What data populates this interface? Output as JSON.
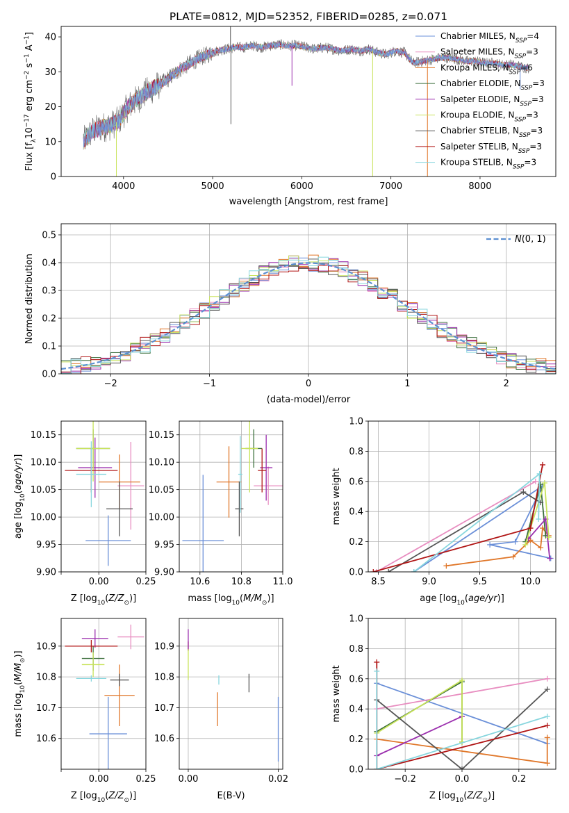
{
  "colors": {
    "chabrier_miles": "#6a8fd8",
    "salpeter_miles": "#e88dc0",
    "kroupa_miles": "#e0772a",
    "chabrier_elodie": "#3b6e3b",
    "salpeter_elodie": "#9b2fae",
    "kroupa_elodie": "#c8e35a",
    "chabrier_stelib": "#555555",
    "salpeter_stelib": "#b01515",
    "kroupa_stelib": "#87d6de",
    "gauss": "#5b8fd1"
  },
  "chart_data": [
    {
      "id": "spectrum",
      "type": "line",
      "title": "PLATE=0812, MJD=52352, FIBERID=0285, z=0.071",
      "xlabel": "wavelength [Angstrom, rest frame]",
      "ylabel": "Flux [f_λ10^-17 erg cm^-2 s^-1 A^-1]",
      "xlim": [
        3300,
        8850
      ],
      "ylim": [
        0,
        43
      ],
      "xticks": [
        4000,
        5000,
        6000,
        7000,
        8000
      ],
      "yticks": [
        0,
        10,
        20,
        30,
        40
      ],
      "grid": false,
      "legend_position": "top-right",
      "continuum": {
        "x": [
          3550,
          3650,
          3750,
          3850,
          3950,
          4050,
          4150,
          4250,
          4350,
          4450,
          4550,
          4650,
          4750,
          4850,
          4950,
          5050,
          5150,
          5250,
          5350,
          5450,
          5550,
          5650,
          5750,
          5850,
          5950,
          6050,
          6150,
          6250,
          6350,
          6450,
          6550,
          6650,
          6750,
          6850,
          6950,
          7050,
          7150,
          7250,
          7350,
          7450,
          7550,
          7650,
          7750,
          7850,
          7950,
          8050,
          8150,
          8250,
          8350,
          8450,
          8550
        ],
        "y": [
          10,
          13,
          14,
          14.5,
          16,
          20,
          22,
          24,
          25.5,
          27,
          29,
          31,
          32.5,
          34,
          35,
          36,
          36.5,
          37,
          37,
          37.5,
          37,
          37.5,
          37.8,
          37.5,
          37.5,
          37,
          36.5,
          37,
          36.5,
          36,
          36.5,
          36,
          36.5,
          35.5,
          35,
          36,
          35.5,
          32.5,
          33,
          33.5,
          34,
          34,
          33.5,
          33,
          33,
          32.5,
          32.5,
          32,
          32,
          31.5,
          31
        ]
      },
      "spikes": [
        {
          "x": 5200,
          "y": 43,
          "series": "Chabrier STELIB"
        },
        {
          "x": 5205,
          "y": 15,
          "series": "Chabrier STELIB"
        },
        {
          "x": 6795,
          "y": 0,
          "series": "Kroupa ELODIE"
        },
        {
          "x": 7410,
          "y": 0,
          "series": "Kroupa MILES"
        },
        {
          "x": 3920,
          "y": 0,
          "series": "Kroupa ELODIE"
        },
        {
          "x": 5890,
          "y": 26,
          "series": "Salpeter ELODIE"
        },
        {
          "x": 8450,
          "y": 25,
          "series": "Chabrier MILES"
        }
      ],
      "series": [
        {
          "name": "Chabrier MILES, N_SSP=4"
        },
        {
          "name": "Salpeter MILES, N_SSP=3"
        },
        {
          "name": "Kroupa MILES, N_SSP=6"
        },
        {
          "name": "Chabrier ELODIE, N_SSP=3"
        },
        {
          "name": "Salpeter ELODIE, N_SSP=3"
        },
        {
          "name": "Kroupa ELODIE, N_SSP=3"
        },
        {
          "name": "Chabrier STELIB, N_SSP=3"
        },
        {
          "name": "Salpeter STELIB, N_SSP=3"
        },
        {
          "name": "Kroupa STELIB, N_SSP=3"
        }
      ]
    },
    {
      "id": "residuals",
      "type": "histogram",
      "xlabel": "(data-model)/error",
      "ylabel": "Normed distribution",
      "xlim": [
        -2.5,
        2.5
      ],
      "ylim": [
        0,
        0.54
      ],
      "xticks": [
        -2,
        -1,
        0,
        1,
        2
      ],
      "yticks": [
        0.0,
        0.1,
        0.2,
        0.3,
        0.4,
        0.5
      ],
      "grid": true,
      "legend_position": "top-right",
      "legend_label": "N(0, 1)",
      "bin_width": 0.1,
      "bin_start": -2.5
    },
    {
      "id": "age_vs_Z",
      "type": "errorbar",
      "xlabel": "Z [log10(Z/Z_sun)]",
      "ylabel": "age [log10(age/yr)]",
      "xlim": [
        -0.2,
        0.25
      ],
      "ylim": [
        9.9,
        10.175
      ],
      "xticks": [
        -0.2,
        0.0,
        0.25
      ],
      "xticklabels": [
        "",
        "0.00",
        "0.25"
      ],
      "yticks": [
        9.9,
        9.95,
        10.0,
        10.05,
        10.1,
        10.15
      ],
      "grid": true,
      "points": [
        {
          "series": "Chabrier MILES",
          "x": 0.05,
          "xerr": 0.12,
          "y": 9.957,
          "yerr": 0.046
        },
        {
          "series": "Salpeter MILES",
          "x": 0.17,
          "xerr": 0.07,
          "y": 10.057,
          "yerr": 0.08
        },
        {
          "series": "Kroupa MILES",
          "x": 0.11,
          "xerr": 0.11,
          "y": 10.064,
          "yerr": 0.05
        },
        {
          "series": "Chabrier ELODIE",
          "x": -0.03,
          "xerr": 0.09,
          "y": 10.125,
          "yerr": 0.035
        },
        {
          "series": "Salpeter ELODIE",
          "x": -0.02,
          "xerr": 0.09,
          "y": 10.09,
          "yerr": 0.055
        },
        {
          "series": "Kroupa ELODIE",
          "x": -0.03,
          "xerr": 0.09,
          "y": 10.125,
          "yerr": 0.06
        },
        {
          "series": "Chabrier STELIB",
          "x": 0.11,
          "xerr": 0.07,
          "y": 10.015,
          "yerr": 0.05
        },
        {
          "series": "Salpeter STELIB",
          "x": -0.04,
          "xerr": 0.14,
          "y": 10.085,
          "yerr": 0.04
        },
        {
          "series": "Kroupa STELIB",
          "x": -0.04,
          "xerr": 0.08,
          "y": 10.078,
          "yerr": 0.06
        }
      ]
    },
    {
      "id": "age_vs_mass",
      "type": "errorbar",
      "xlabel": "mass [log10(M/M_sun)]",
      "xlim": [
        10.5,
        11.0
      ],
      "ylim": [
        9.9,
        10.175
      ],
      "xticks": [
        10.6,
        10.8,
        11.0
      ],
      "xticklabels": [
        "10.6",
        "10.8",
        "11.0"
      ],
      "yticks": [
        9.9,
        9.95,
        10.0,
        10.05,
        10.1,
        10.15
      ],
      "grid": true,
      "points": [
        {
          "series": "Chabrier MILES",
          "x": 10.615,
          "xerr": 0.1,
          "y": 9.957,
          "yerr": 0.12
        },
        {
          "series": "Salpeter MILES",
          "x": 10.93,
          "xerr": 0.07,
          "y": 10.057,
          "yerr": 0.035
        },
        {
          "series": "Kroupa MILES",
          "x": 10.74,
          "xerr": 0.06,
          "y": 10.064,
          "yerr": 0.065
        },
        {
          "series": "Chabrier ELODIE",
          "x": 10.86,
          "xerr": 0.04,
          "y": 10.125,
          "yerr": 0.035
        },
        {
          "series": "Salpeter ELODIE",
          "x": 10.92,
          "xerr": 0.03,
          "y": 10.09,
          "yerr": 0.06
        },
        {
          "series": "Kroupa ELODIE",
          "x": 10.84,
          "xerr": 0.04,
          "y": 10.125,
          "yerr": 0.08
        },
        {
          "series": "Chabrier STELIB",
          "x": 10.79,
          "xerr": 0.02,
          "y": 10.015,
          "yerr": 0.05
        },
        {
          "series": "Salpeter STELIB",
          "x": 10.9,
          "xerr": 0.02,
          "y": 10.085,
          "yerr": 0.04
        },
        {
          "series": "Kroupa STELIB",
          "x": 10.795,
          "xerr": 0.01,
          "y": 10.078,
          "yerr": 0.07
        }
      ]
    },
    {
      "id": "weight_vs_age",
      "type": "line",
      "xlabel": "age [log10(age/yr)]",
      "ylabel": "mass weight",
      "xlim": [
        8.4,
        10.25
      ],
      "ylim": [
        0,
        1.0
      ],
      "xticks": [
        8.5,
        9.0,
        9.5,
        10.0
      ],
      "yticks": [
        0.0,
        0.2,
        0.4,
        0.6,
        0.8,
        1.0
      ],
      "grid": true,
      "series": [
        {
          "name": "Chabrier MILES",
          "x": [
            8.85,
            10.12,
            9.85,
            9.6,
            10.2
          ],
          "y": [
            0.0,
            0.57,
            0.2,
            0.18,
            0.09
          ]
        },
        {
          "name": "Salpeter MILES",
          "x": [
            8.48,
            10.05
          ],
          "y": [
            0.0,
            0.6
          ]
        },
        {
          "name": "Kroupa MILES",
          "x": [
            9.17,
            9.83,
            10.0,
            10.1,
            10.12,
            10.18
          ],
          "y": [
            0.04,
            0.1,
            0.21,
            0.16,
            0.29,
            0.24
          ]
        },
        {
          "name": "Chabrier ELODIE",
          "x": [
            9.95,
            10.1,
            10.15
          ],
          "y": [
            0.2,
            0.58,
            0.24
          ]
        },
        {
          "name": "Salpeter ELODIE",
          "x": [
            9.98,
            10.15,
            10.19
          ],
          "y": [
            0.22,
            0.35,
            0.09
          ]
        },
        {
          "name": "Kroupa ELODIE",
          "x": [
            9.95,
            10.14,
            10.18
          ],
          "y": [
            0.18,
            0.59,
            0.23
          ]
        },
        {
          "name": "Chabrier STELIB",
          "x": [
            8.6,
            9.93,
            10.1
          ],
          "y": [
            0.0,
            0.53,
            0.46
          ]
        },
        {
          "name": "Salpeter STELIB",
          "x": [
            8.45,
            10.0,
            10.12
          ],
          "y": [
            -0.0,
            0.29,
            0.71
          ]
        },
        {
          "name": "Kroupa STELIB",
          "x": [
            8.85,
            10.09,
            10.08
          ],
          "y": [
            0.0,
            0.65,
            0.35
          ]
        }
      ]
    },
    {
      "id": "mass_vs_Z",
      "type": "errorbar",
      "xlabel": "Z [log10(Z/Z_sun)]",
      "ylabel": "mass [log10(M/M_sun)]",
      "xlim": [
        -0.2,
        0.25
      ],
      "ylim": [
        10.5,
        10.99
      ],
      "xticks": [
        -0.2,
        0.0,
        0.25
      ],
      "xticklabels": [
        "",
        "0.00",
        "0.25"
      ],
      "yticks": [
        10.6,
        10.7,
        10.8,
        10.9
      ],
      "grid": true,
      "points": [
        {
          "series": "Chabrier MILES",
          "x": 0.05,
          "xerr": 0.1,
          "y": 10.615,
          "yerr": 0.12
        },
        {
          "series": "Salpeter MILES",
          "x": 0.17,
          "xerr": 0.07,
          "y": 10.93,
          "yerr": 0.04
        },
        {
          "series": "Kroupa MILES",
          "x": 0.11,
          "xerr": 0.08,
          "y": 10.74,
          "yerr": 0.1
        },
        {
          "series": "Chabrier ELODIE",
          "x": -0.03,
          "xerr": 0.06,
          "y": 10.86,
          "yerr": 0.04
        },
        {
          "series": "Salpeter ELODIE",
          "x": -0.02,
          "xerr": 0.07,
          "y": 10.925,
          "yerr": 0.03
        },
        {
          "series": "Kroupa ELODIE",
          "x": -0.03,
          "xerr": 0.06,
          "y": 10.84,
          "yerr": 0.04
        },
        {
          "series": "Chabrier STELIB",
          "x": 0.11,
          "xerr": 0.05,
          "y": 10.79,
          "yerr": 0.02
        },
        {
          "series": "Salpeter STELIB",
          "x": -0.04,
          "xerr": 0.14,
          "y": 10.9,
          "yerr": 0.02
        },
        {
          "series": "Kroupa STELIB",
          "x": -0.04,
          "xerr": 0.08,
          "y": 10.795,
          "yerr": 0.01
        }
      ]
    },
    {
      "id": "mass_vs_ebv",
      "type": "errorbar",
      "xlabel": "E(B-V)",
      "xlim": [
        -0.002,
        0.021
      ],
      "ylim": [
        10.5,
        10.99
      ],
      "xticks": [
        0.0,
        0.02
      ],
      "xticklabels": [
        "0.00",
        "0.02"
      ],
      "yticks": [
        10.6,
        10.7,
        10.8,
        10.9
      ],
      "grid": true,
      "points": [
        {
          "series": "Chabrier MILES",
          "x": 0.02,
          "xerr": 0,
          "y": 10.63,
          "yerr": 0.105
        },
        {
          "series": "Kroupa MILES",
          "x": 0.0065,
          "xerr": 0,
          "y": 10.695,
          "yerr": 0.055
        },
        {
          "series": "Chabrier STELIB",
          "x": 0.0135,
          "xerr": 0,
          "y": 10.78,
          "yerr": 0.03
        },
        {
          "series": "Kroupa STELIB",
          "x": 0.0068,
          "xerr": 0,
          "y": 10.79,
          "yerr": 0.015
        },
        {
          "series": "Salpeter STELIB",
          "x": 0.0,
          "xerr": 0,
          "y": 10.9,
          "yerr": 0.015
        },
        {
          "series": "Salpeter ELODIE",
          "x": 0.0,
          "xerr": 0,
          "y": 10.92,
          "yerr": 0.035
        },
        {
          "series": "Kroupa ELODIE",
          "x": 0.0,
          "xerr": 0,
          "y": 10.84,
          "yerr": 0.05
        }
      ]
    },
    {
      "id": "weight_vs_Z",
      "type": "line",
      "xlabel": "Z [log10(Z/Z_sun)]",
      "ylabel": "mass weight",
      "xlim": [
        -0.33,
        0.33
      ],
      "ylim": [
        0,
        1.0
      ],
      "xticks": [
        -0.2,
        0.0,
        0.2
      ],
      "xticklabels": [
        "−0.2",
        "0.0",
        "0.2"
      ],
      "yticks": [
        0.0,
        0.2,
        0.4,
        0.6,
        0.8,
        1.0
      ],
      "grid": true,
      "series": [
        {
          "name": "Chabrier MILES",
          "x": [
            -0.3,
            0.3
          ],
          "y": [
            0.57,
            0.17
          ]
        },
        {
          "name": "Salpeter MILES",
          "x": [
            -0.3,
            0.3
          ],
          "y": [
            0.4,
            0.6
          ]
        },
        {
          "name": "Kroupa MILES",
          "x": [
            -0.3,
            0.3,
            0.3
          ],
          "y": [
            0.2,
            0.04,
            0.21
          ]
        },
        {
          "name": "Chabrier ELODIE",
          "x": [
            -0.3,
            0.0,
            0.0
          ],
          "y": [
            0.25,
            0.58,
            0.18
          ]
        },
        {
          "name": "Salpeter ELODIE",
          "x": [
            -0.3,
            0.0
          ],
          "y": [
            0.09,
            0.35
          ]
        },
        {
          "name": "Kroupa ELODIE",
          "x": [
            -0.3,
            0.0,
            0.0
          ],
          "y": [
            0.24,
            0.59,
            0.18
          ]
        },
        {
          "name": "Chabrier STELIB",
          "x": [
            -0.3,
            0.0,
            0.3
          ],
          "y": [
            0.46,
            0.0,
            0.53
          ]
        },
        {
          "name": "Salpeter STELIB",
          "x": [
            -0.3,
            -0.3,
            0.3
          ],
          "y": [
            0.71,
            0.0,
            0.29
          ]
        },
        {
          "name": "Kroupa STELIB",
          "x": [
            -0.3,
            -0.3,
            0.3
          ],
          "y": [
            0.65,
            0.0,
            0.35
          ]
        }
      ]
    }
  ]
}
